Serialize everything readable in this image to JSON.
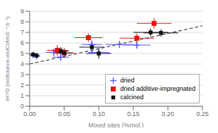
{
  "chart_data": {
    "type": "scatter",
    "xlabel": "Mixed sites (%mol.)",
    "ylabel": "rHYD (moltoluene.molCoMoS⁻¹.h⁻¹)",
    "xlim": [
      0.0,
      0.25
    ],
    "ylim": [
      0,
      9
    ],
    "xticks": [
      {
        "value": 0.0,
        "label": "0.00"
      },
      0.05,
      {
        "value": 0.1,
        "label": "0.10"
      },
      0.15,
      {
        "value": 0.2,
        "label": "0.20"
      },
      0.25
    ],
    "yticks": [
      0,
      1,
      2,
      3,
      4,
      5,
      6,
      7,
      8,
      9
    ],
    "grid": "y",
    "legend": "lower right",
    "series": [
      {
        "type": "line",
        "line_style": "dashed",
        "color": "#444444",
        "x": [
          0.0,
          0.25
        ],
        "values": [
          4.0,
          7.625
        ]
      },
      {
        "type": "scatter",
        "name": "dried",
        "marker": "plus",
        "color": "#5555ff",
        "x": [
          0.005,
          0.01,
          0.035,
          0.045,
          0.09,
          0.1,
          0.13,
          0.155
        ],
        "values": [
          4.85,
          4.75,
          5.1,
          4.65,
          5.85,
          5.1,
          5.85,
          5.8
        ],
        "xerr": [
          0.005,
          0.005,
          0.012,
          0.012,
          0.015,
          0.015,
          0.02,
          0.02
        ],
        "yerr": [
          0.25,
          0.25,
          0.35,
          0.35,
          0.4,
          0.4,
          0.35,
          0.35
        ]
      },
      {
        "type": "scatter",
        "name": "dried additive-impregnated",
        "marker": "square",
        "color": "#ee1111",
        "x": [
          0.04,
          0.05,
          0.085,
          0.155,
          0.18
        ],
        "values": [
          5.3,
          5.05,
          6.5,
          6.45,
          7.85
        ],
        "xerr": [
          0.015,
          0.015,
          0.02,
          0.025,
          0.025
        ],
        "yerr": [
          0.5,
          0.5,
          0.4,
          0.45,
          0.5
        ]
      },
      {
        "type": "scatter",
        "name": "calcined",
        "marker": "square",
        "color": "#111111",
        "x": [
          0.005,
          0.01,
          0.045,
          0.05,
          0.09,
          0.1,
          0.175,
          0.19
        ],
        "values": [
          4.9,
          4.8,
          5.25,
          5.05,
          5.6,
          5.0,
          7.0,
          6.95
        ],
        "xerr": [
          0.005,
          0.005,
          0.012,
          0.012,
          0.018,
          0.018,
          0.025,
          0.025
        ],
        "yerr": [
          0.25,
          0.25,
          0.35,
          0.35,
          0.5,
          0.5,
          0.35,
          0.35
        ]
      }
    ]
  }
}
